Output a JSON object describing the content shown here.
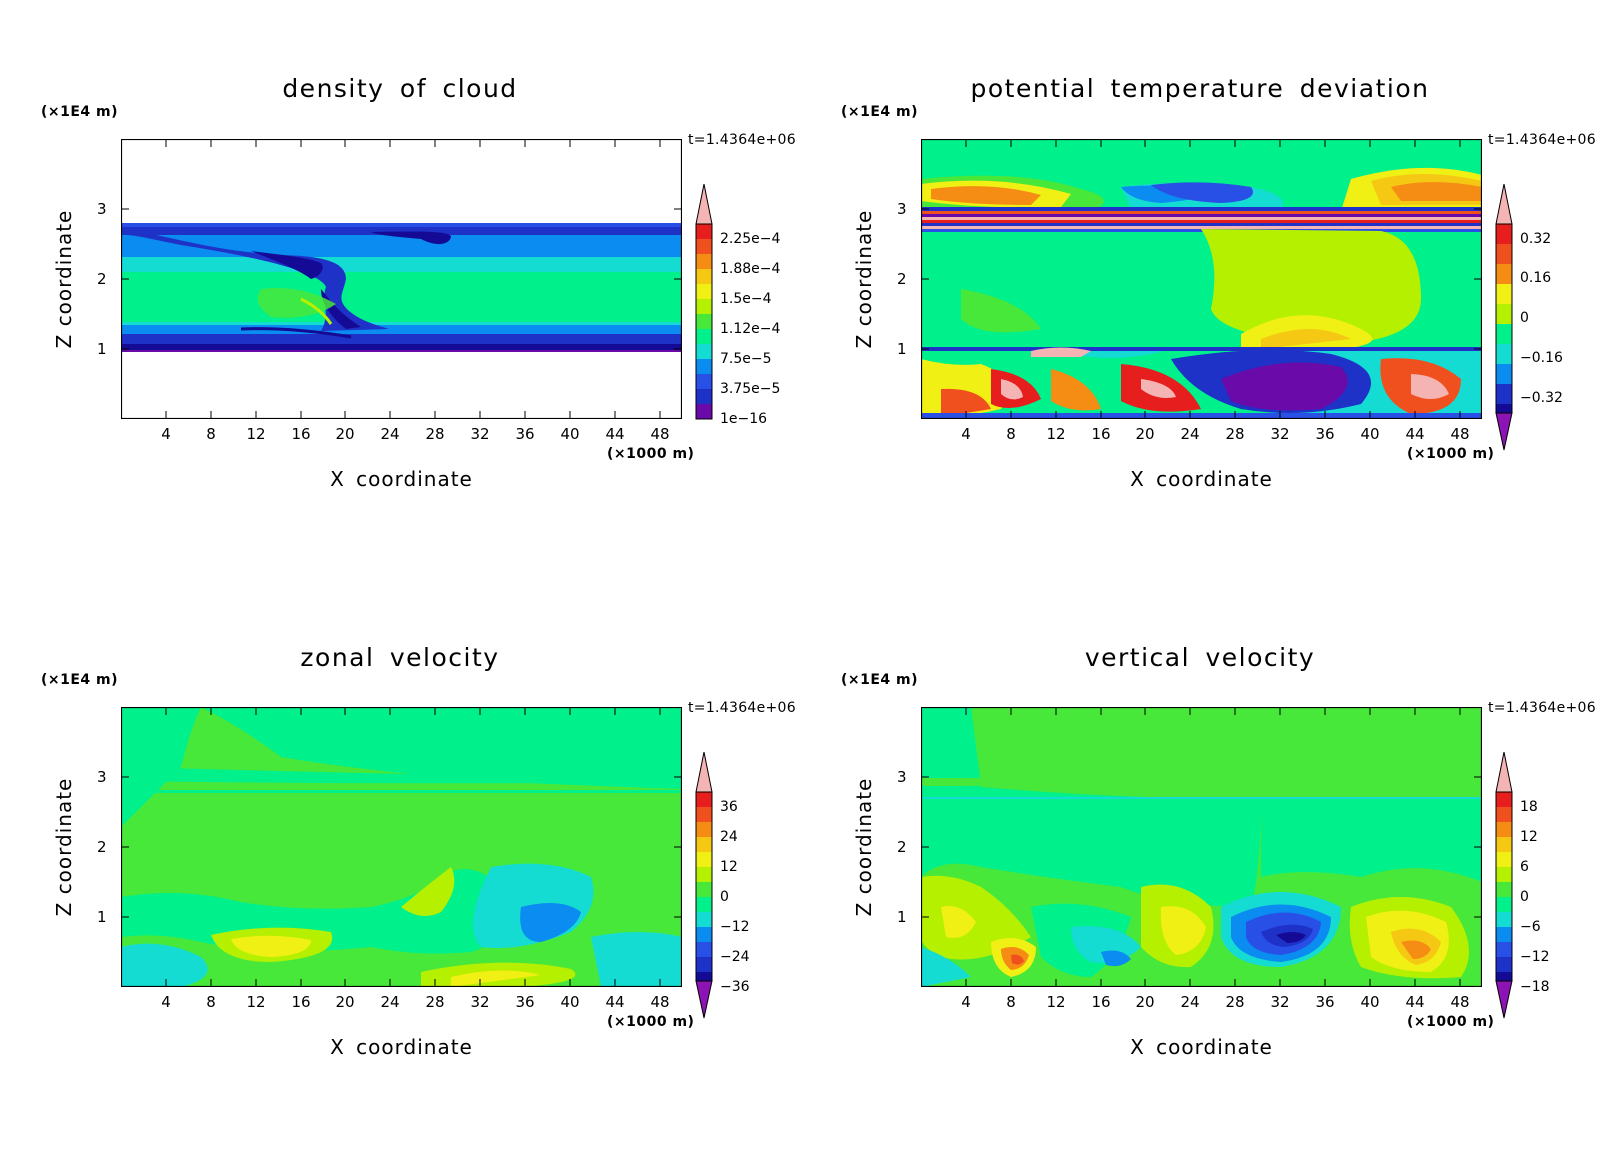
{
  "figure": {
    "panels": [
      {
        "title": "density of cloud",
        "y_unit": "(×1E4 m)",
        "time_label": "t=1.4364e+06",
        "y_label": "Z coordinate",
        "x_label": "X coordinate",
        "x_unit": "(×1000 m)",
        "colorbar_labels": [
          "2.25e−4",
          "1.88e−4",
          "1.5e−4",
          "1.12e−4",
          "7.5e−5",
          "3.75e−5",
          "1e−16"
        ]
      },
      {
        "title": "potential temperature deviation",
        "y_unit": "(×1E4 m)",
        "time_label": "t=1.4364e+06",
        "y_label": "Z coordinate",
        "x_label": "X coordinate",
        "x_unit": "(×1000 m)",
        "colorbar_labels": [
          "0.32",
          "0.16",
          "0",
          "−0.16",
          "−0.32"
        ]
      },
      {
        "title": "zonal velocity",
        "y_unit": "(×1E4 m)",
        "time_label": "t=1.4364e+06",
        "y_label": "Z coordinate",
        "x_label": "X coordinate",
        "x_unit": "(×1000 m)",
        "colorbar_labels": [
          "36",
          "24",
          "12",
          "0",
          "−12",
          "−24",
          "−36"
        ]
      },
      {
        "title": "vertical velocity",
        "y_unit": "(×1E4 m)",
        "time_label": "t=1.4364e+06",
        "y_label": "Z coordinate",
        "x_label": "X coordinate",
        "x_unit": "(×1000 m)",
        "colorbar_labels": [
          "18",
          "12",
          "6",
          "0",
          "−6",
          "−12",
          "−18"
        ]
      }
    ]
  },
  "chart_data": [
    {
      "type": "heatmap",
      "title": "density of cloud",
      "xlabel": "X coordinate",
      "ylabel": "Z coordinate",
      "x_unit": "(×1000 m)",
      "y_unit": "(×1E4 m)",
      "time": "t=1.4364e+06",
      "x_ticks": [
        4,
        8,
        12,
        16,
        20,
        24,
        28,
        32,
        36,
        40,
        44,
        48
      ],
      "y_ticks": [
        1,
        2,
        3
      ],
      "xlim": [
        0,
        50
      ],
      "ylim": [
        0,
        4
      ],
      "colorbar_levels": [
        0.000225,
        0.000188,
        0.00015,
        0.000112,
        7.5e-05,
        3.75e-05,
        1e-16
      ],
      "cloud_layer_z": [
        0.95,
        2.7
      ]
    },
    {
      "type": "heatmap",
      "title": "potential temperature deviation",
      "xlabel": "X coordinate",
      "ylabel": "Z coordinate",
      "x_unit": "(×1000 m)",
      "y_unit": "(×1E4 m)",
      "time": "t=1.4364e+06",
      "x_ticks": [
        4,
        8,
        12,
        16,
        20,
        24,
        28,
        32,
        36,
        40,
        44,
        48
      ],
      "y_ticks": [
        1,
        2,
        3
      ],
      "xlim": [
        0,
        50
      ],
      "ylim": [
        0,
        4
      ],
      "colorbar_levels": [
        0.32,
        0.16,
        0,
        -0.16,
        -0.32
      ]
    },
    {
      "type": "heatmap",
      "title": "zonal velocity",
      "xlabel": "X coordinate",
      "ylabel": "Z coordinate",
      "x_unit": "(×1000 m)",
      "y_unit": "(×1E4 m)",
      "time": "t=1.4364e+06",
      "x_ticks": [
        4,
        8,
        12,
        16,
        20,
        24,
        28,
        32,
        36,
        40,
        44,
        48
      ],
      "y_ticks": [
        1,
        2,
        3
      ],
      "xlim": [
        0,
        50
      ],
      "ylim": [
        0,
        4
      ],
      "colorbar_levels": [
        36,
        24,
        12,
        0,
        -12,
        -24,
        -36
      ]
    },
    {
      "type": "heatmap",
      "title": "vertical velocity",
      "xlabel": "X coordinate",
      "ylabel": "Z coordinate",
      "x_unit": "(×1000 m)",
      "y_unit": "(×1E4 m)",
      "time": "t=1.4364e+06",
      "x_ticks": [
        4,
        8,
        12,
        16,
        20,
        24,
        28,
        32,
        36,
        40,
        44,
        48
      ],
      "y_ticks": [
        1,
        2,
        3
      ],
      "xlim": [
        0,
        50
      ],
      "ylim": [
        0,
        4
      ],
      "colorbar_levels": [
        18,
        12,
        6,
        0,
        -6,
        -12,
        -18
      ]
    }
  ]
}
